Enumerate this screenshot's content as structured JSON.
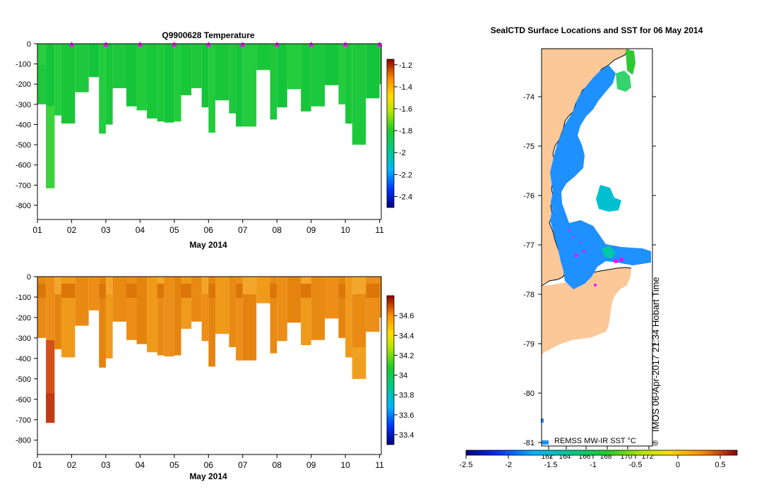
{
  "chart_data": [
    {
      "type": "heatmap",
      "title": "Q9900628  Temperature",
      "xlabel": "May 2014",
      "ylabel": "",
      "x_ticks": [
        "01",
        "02",
        "03",
        "04",
        "05",
        "06",
        "07",
        "08",
        "09",
        "10",
        "11"
      ],
      "y_ticks": [
        "0",
        "-100",
        "-200",
        "-300",
        "-400",
        "-500",
        "-600",
        "-700",
        "-800"
      ],
      "xlim": [
        1,
        11.05
      ],
      "ylim": [
        -870,
        0
      ],
      "colorbar": {
        "ticks": [
          "-1.2",
          "-1.4",
          "-1.6",
          "-1.8",
          "-2",
          "-2.2",
          "-2.4"
        ],
        "range": [
          -2.5,
          -1.15
        ]
      },
      "profile_markers_day": [
        2,
        3,
        4,
        5,
        6,
        7,
        8,
        9,
        10,
        11
      ],
      "profile_bottom_depths": [
        {
          "start": 1.0,
          "end": 1.25,
          "depth": 300
        },
        {
          "start": 1.25,
          "end": 1.5,
          "depth": 715
        },
        {
          "start": 1.5,
          "end": 1.7,
          "depth": 355
        },
        {
          "start": 1.7,
          "end": 2.1,
          "depth": 395
        },
        {
          "start": 2.1,
          "end": 2.5,
          "depth": 240
        },
        {
          "start": 2.5,
          "end": 2.8,
          "depth": 165
        },
        {
          "start": 2.8,
          "end": 3.0,
          "depth": 445
        },
        {
          "start": 3.0,
          "end": 3.2,
          "depth": 400
        },
        {
          "start": 3.2,
          "end": 3.6,
          "depth": 220
        },
        {
          "start": 3.6,
          "end": 3.9,
          "depth": 310
        },
        {
          "start": 3.9,
          "end": 4.2,
          "depth": 330
        },
        {
          "start": 4.2,
          "end": 4.5,
          "depth": 370
        },
        {
          "start": 4.5,
          "end": 4.7,
          "depth": 385
        },
        {
          "start": 4.7,
          "end": 5.0,
          "depth": 390
        },
        {
          "start": 5.0,
          "end": 5.2,
          "depth": 385
        },
        {
          "start": 5.2,
          "end": 5.5,
          "depth": 255
        },
        {
          "start": 5.5,
          "end": 5.8,
          "depth": 220
        },
        {
          "start": 5.8,
          "end": 6.0,
          "depth": 315
        },
        {
          "start": 6.0,
          "end": 6.2,
          "depth": 440
        },
        {
          "start": 6.2,
          "end": 6.6,
          "depth": 280
        },
        {
          "start": 6.6,
          "end": 6.8,
          "depth": 345
        },
        {
          "start": 6.8,
          "end": 7.0,
          "depth": 410
        },
        {
          "start": 7.0,
          "end": 7.4,
          "depth": 410
        },
        {
          "start": 7.4,
          "end": 7.8,
          "depth": 130
        },
        {
          "start": 7.8,
          "end": 8.0,
          "depth": 375
        },
        {
          "start": 8.0,
          "end": 8.3,
          "depth": 315
        },
        {
          "start": 8.3,
          "end": 8.7,
          "depth": 225
        },
        {
          "start": 8.7,
          "end": 9.0,
          "depth": 335
        },
        {
          "start": 9.0,
          "end": 9.4,
          "depth": 310
        },
        {
          "start": 9.4,
          "end": 9.8,
          "depth": 205
        },
        {
          "start": 9.8,
          "end": 10.0,
          "depth": 300
        },
        {
          "start": 10.0,
          "end": 10.2,
          "depth": 395
        },
        {
          "start": 10.2,
          "end": 10.6,
          "depth": 500
        },
        {
          "start": 10.6,
          "end": 11.0,
          "depth": 270
        },
        {
          "start": 11.0,
          "end": 11.05,
          "depth": 200
        }
      ]
    },
    {
      "type": "heatmap",
      "title": "",
      "xlabel": "May 2014",
      "ylabel": "",
      "x_ticks": [
        "01",
        "02",
        "03",
        "04",
        "05",
        "06",
        "07",
        "08",
        "09",
        "10",
        "11"
      ],
      "y_ticks": [
        "0",
        "-100",
        "-200",
        "-300",
        "-400",
        "-500",
        "-600",
        "-700",
        "-800"
      ],
      "xlim": [
        1,
        11.05
      ],
      "ylim": [
        -870,
        0
      ],
      "colorbar": {
        "ticks": [
          "34.6",
          "34.4",
          "34.2",
          "34",
          "33.8",
          "33.6",
          "33.4"
        ],
        "range": [
          33.3,
          34.8
        ]
      }
    },
    {
      "type": "heatmap",
      "title": "SealCTD Surface Locations and SST for 06 May 2014",
      "xlabel": "",
      "ylabel": "",
      "y_ticks": [
        "-74",
        "-75",
        "-76",
        "-77",
        "-78",
        "-79",
        "-80",
        "-81"
      ],
      "x_ticks": [
        "162°",
        "164°",
        "166°",
        "168°",
        "170°",
        "172°"
      ],
      "colorbar": {
        "ticks": [
          "-2.5",
          "-2",
          "-1.5",
          "-1",
          "-0.5",
          "0",
          "0.5"
        ],
        "range": [
          -2.5,
          0.7
        ]
      },
      "annotations": [
        "REMSS MW-IR SST °C",
        "IMOS 06-Apr-2017 21:34 Hobart Time",
        "©"
      ]
    }
  ]
}
